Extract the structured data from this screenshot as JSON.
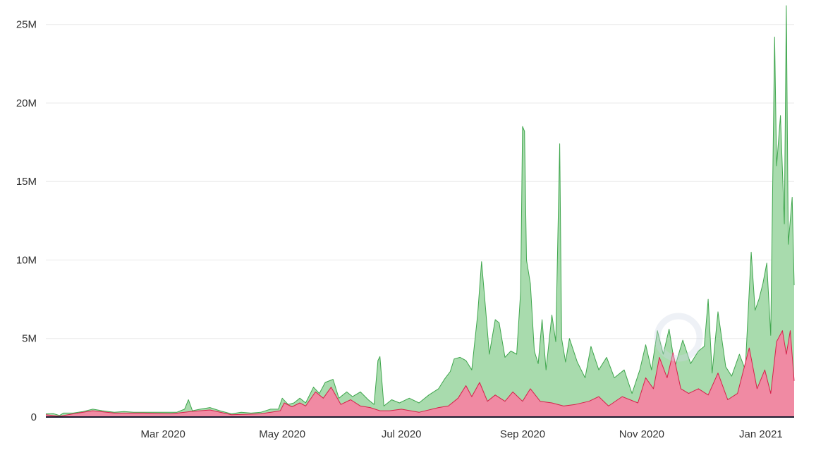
{
  "chart_data": {
    "type": "area",
    "stacked": false,
    "grid": "horizontal",
    "legend": "none",
    "y_ticks": [
      {
        "value": 0,
        "label": "0"
      },
      {
        "value": 5000000,
        "label": "5M"
      },
      {
        "value": 10000000,
        "label": "10M"
      },
      {
        "value": 15000000,
        "label": "15M"
      },
      {
        "value": 20000000,
        "label": "20M"
      },
      {
        "value": 25000000,
        "label": "25M"
      }
    ],
    "x_ticks": [
      {
        "value": "2020-03-01",
        "label": "Mar 2020"
      },
      {
        "value": "2020-05-01",
        "label": "May 2020"
      },
      {
        "value": "2020-07-01",
        "label": "Jul 2020"
      },
      {
        "value": "2020-09-01",
        "label": "Sep 2020"
      },
      {
        "value": "2020-11-01",
        "label": "Nov 2020"
      },
      {
        "value": "2021-01-01",
        "label": "Jan 2021"
      }
    ],
    "xlim": [
      "2020-01-01",
      "2021-01-18"
    ],
    "ylim": [
      0,
      26200000
    ],
    "series": [
      {
        "color": "#3fa64d",
        "fill": "#a8dbad",
        "points": [
          [
            "2020-01-01",
            200000
          ],
          [
            "2020-01-05",
            210000
          ],
          [
            "2020-01-08",
            100000
          ],
          [
            "2020-01-10",
            250000
          ],
          [
            "2020-01-15",
            250000
          ],
          [
            "2020-01-20",
            350000
          ],
          [
            "2020-01-25",
            500000
          ],
          [
            "2020-01-30",
            400000
          ],
          [
            "2020-02-05",
            300000
          ],
          [
            "2020-02-10",
            350000
          ],
          [
            "2020-02-15",
            300000
          ],
          [
            "2020-02-20",
            300000
          ],
          [
            "2020-03-01",
            300000
          ],
          [
            "2020-03-08",
            300000
          ],
          [
            "2020-03-12",
            500000
          ],
          [
            "2020-03-14",
            1100000
          ],
          [
            "2020-03-16",
            400000
          ],
          [
            "2020-03-20",
            500000
          ],
          [
            "2020-03-25",
            600000
          ],
          [
            "2020-03-30",
            400000
          ],
          [
            "2020-04-05",
            200000
          ],
          [
            "2020-04-10",
            300000
          ],
          [
            "2020-04-15",
            250000
          ],
          [
            "2020-04-20",
            300000
          ],
          [
            "2020-04-25",
            500000
          ],
          [
            "2020-04-29",
            500000
          ],
          [
            "2020-05-01",
            1200000
          ],
          [
            "2020-05-04",
            800000
          ],
          [
            "2020-05-07",
            900000
          ],
          [
            "2020-05-10",
            1200000
          ],
          [
            "2020-05-13",
            900000
          ],
          [
            "2020-05-17",
            1900000
          ],
          [
            "2020-05-20",
            1500000
          ],
          [
            "2020-05-23",
            2200000
          ],
          [
            "2020-05-27",
            2400000
          ],
          [
            "2020-05-30",
            1200000
          ],
          [
            "2020-06-03",
            1600000
          ],
          [
            "2020-06-06",
            1300000
          ],
          [
            "2020-06-10",
            1600000
          ],
          [
            "2020-06-14",
            1100000
          ],
          [
            "2020-06-17",
            800000
          ],
          [
            "2020-06-19",
            3600000
          ],
          [
            "2020-06-20",
            3850000
          ],
          [
            "2020-06-22",
            700000
          ],
          [
            "2020-06-26",
            1100000
          ],
          [
            "2020-06-30",
            900000
          ],
          [
            "2020-07-05",
            1200000
          ],
          [
            "2020-07-10",
            900000
          ],
          [
            "2020-07-15",
            1400000
          ],
          [
            "2020-07-20",
            1800000
          ],
          [
            "2020-07-23",
            2400000
          ],
          [
            "2020-07-26",
            2900000
          ],
          [
            "2020-07-28",
            3700000
          ],
          [
            "2020-07-31",
            3800000
          ],
          [
            "2020-08-03",
            3600000
          ],
          [
            "2020-08-06",
            3000000
          ],
          [
            "2020-08-09",
            6500000
          ],
          [
            "2020-08-11",
            9900000
          ],
          [
            "2020-08-13",
            7000000
          ],
          [
            "2020-08-15",
            4000000
          ],
          [
            "2020-08-18",
            6200000
          ],
          [
            "2020-08-20",
            6000000
          ],
          [
            "2020-08-23",
            3800000
          ],
          [
            "2020-08-26",
            4200000
          ],
          [
            "2020-08-29",
            4000000
          ],
          [
            "2020-08-31",
            8000000
          ],
          [
            "2020-09-01",
            18500000
          ],
          [
            "2020-09-02",
            18200000
          ],
          [
            "2020-09-03",
            10000000
          ],
          [
            "2020-09-05",
            8500000
          ],
          [
            "2020-09-07",
            4200000
          ],
          [
            "2020-09-09",
            3400000
          ],
          [
            "2020-09-11",
            6200000
          ],
          [
            "2020-09-13",
            3000000
          ],
          [
            "2020-09-16",
            6500000
          ],
          [
            "2020-09-18",
            4800000
          ],
          [
            "2020-09-20",
            17400000
          ],
          [
            "2020-09-21",
            5000000
          ],
          [
            "2020-09-23",
            3500000
          ],
          [
            "2020-09-25",
            5000000
          ],
          [
            "2020-09-29",
            3500000
          ],
          [
            "2020-10-03",
            2500000
          ],
          [
            "2020-10-06",
            4500000
          ],
          [
            "2020-10-10",
            3000000
          ],
          [
            "2020-10-14",
            3800000
          ],
          [
            "2020-10-18",
            2500000
          ],
          [
            "2020-10-23",
            3000000
          ],
          [
            "2020-10-27",
            1500000
          ],
          [
            "2020-10-31",
            3000000
          ],
          [
            "2020-11-03",
            4600000
          ],
          [
            "2020-11-06",
            3000000
          ],
          [
            "2020-11-09",
            5500000
          ],
          [
            "2020-11-12",
            4000000
          ],
          [
            "2020-11-15",
            5600000
          ],
          [
            "2020-11-18",
            3200000
          ],
          [
            "2020-11-22",
            4900000
          ],
          [
            "2020-11-26",
            3400000
          ],
          [
            "2020-11-30",
            4200000
          ],
          [
            "2020-12-03",
            4500000
          ],
          [
            "2020-12-05",
            7500000
          ],
          [
            "2020-12-07",
            2800000
          ],
          [
            "2020-12-10",
            6700000
          ],
          [
            "2020-12-14",
            3200000
          ],
          [
            "2020-12-17",
            2600000
          ],
          [
            "2020-12-21",
            4000000
          ],
          [
            "2020-12-24",
            3000000
          ],
          [
            "2020-12-27",
            10500000
          ],
          [
            "2020-12-29",
            6800000
          ],
          [
            "2020-12-31",
            7500000
          ],
          [
            "2021-01-02",
            8500000
          ],
          [
            "2021-01-04",
            9800000
          ],
          [
            "2021-01-06",
            5200000
          ],
          [
            "2021-01-08",
            24200000
          ],
          [
            "2021-01-09",
            16000000
          ],
          [
            "2021-01-11",
            19200000
          ],
          [
            "2021-01-13",
            12300000
          ],
          [
            "2021-01-14",
            26200000
          ],
          [
            "2021-01-15",
            11000000
          ],
          [
            "2021-01-17",
            14000000
          ],
          [
            "2021-01-18",
            8400000
          ]
        ]
      },
      {
        "color": "#d6204a",
        "fill": "#f08aa3",
        "points": [
          [
            "2020-01-01",
            150000
          ],
          [
            "2020-01-08",
            50000
          ],
          [
            "2020-01-15",
            200000
          ],
          [
            "2020-01-25",
            400000
          ],
          [
            "2020-02-05",
            250000
          ],
          [
            "2020-02-20",
            250000
          ],
          [
            "2020-03-05",
            200000
          ],
          [
            "2020-03-15",
            350000
          ],
          [
            "2020-03-25",
            450000
          ],
          [
            "2020-04-05",
            150000
          ],
          [
            "2020-04-20",
            200000
          ],
          [
            "2020-04-30",
            400000
          ],
          [
            "2020-05-02",
            900000
          ],
          [
            "2020-05-06",
            650000
          ],
          [
            "2020-05-10",
            900000
          ],
          [
            "2020-05-13",
            700000
          ],
          [
            "2020-05-18",
            1600000
          ],
          [
            "2020-05-22",
            1200000
          ],
          [
            "2020-05-26",
            1900000
          ],
          [
            "2020-05-31",
            800000
          ],
          [
            "2020-06-05",
            1100000
          ],
          [
            "2020-06-10",
            700000
          ],
          [
            "2020-06-15",
            600000
          ],
          [
            "2020-06-20",
            400000
          ],
          [
            "2020-06-25",
            400000
          ],
          [
            "2020-07-01",
            500000
          ],
          [
            "2020-07-10",
            300000
          ],
          [
            "2020-07-20",
            600000
          ],
          [
            "2020-07-25",
            700000
          ],
          [
            "2020-07-30",
            1200000
          ],
          [
            "2020-08-03",
            2000000
          ],
          [
            "2020-08-06",
            1300000
          ],
          [
            "2020-08-10",
            2200000
          ],
          [
            "2020-08-14",
            1000000
          ],
          [
            "2020-08-18",
            1400000
          ],
          [
            "2020-08-23",
            1000000
          ],
          [
            "2020-08-27",
            1600000
          ],
          [
            "2020-09-01",
            1000000
          ],
          [
            "2020-09-05",
            1800000
          ],
          [
            "2020-09-10",
            1000000
          ],
          [
            "2020-09-16",
            900000
          ],
          [
            "2020-09-22",
            700000
          ],
          [
            "2020-09-28",
            800000
          ],
          [
            "2020-10-05",
            1000000
          ],
          [
            "2020-10-10",
            1300000
          ],
          [
            "2020-10-15",
            700000
          ],
          [
            "2020-10-22",
            1300000
          ],
          [
            "2020-10-30",
            900000
          ],
          [
            "2020-11-03",
            2500000
          ],
          [
            "2020-11-07",
            1800000
          ],
          [
            "2020-11-10",
            3800000
          ],
          [
            "2020-11-14",
            2500000
          ],
          [
            "2020-11-17",
            4100000
          ],
          [
            "2020-11-21",
            1800000
          ],
          [
            "2020-11-25",
            1500000
          ],
          [
            "2020-11-30",
            1800000
          ],
          [
            "2020-12-05",
            1400000
          ],
          [
            "2020-12-10",
            2800000
          ],
          [
            "2020-12-15",
            1100000
          ],
          [
            "2020-12-20",
            1500000
          ],
          [
            "2020-12-26",
            4400000
          ],
          [
            "2020-12-30",
            1800000
          ],
          [
            "2021-01-03",
            3000000
          ],
          [
            "2021-01-06",
            1500000
          ],
          [
            "2021-01-09",
            4800000
          ],
          [
            "2021-01-12",
            5500000
          ],
          [
            "2021-01-14",
            4000000
          ],
          [
            "2021-01-16",
            5500000
          ],
          [
            "2021-01-18",
            2300000
          ]
        ]
      }
    ]
  }
}
